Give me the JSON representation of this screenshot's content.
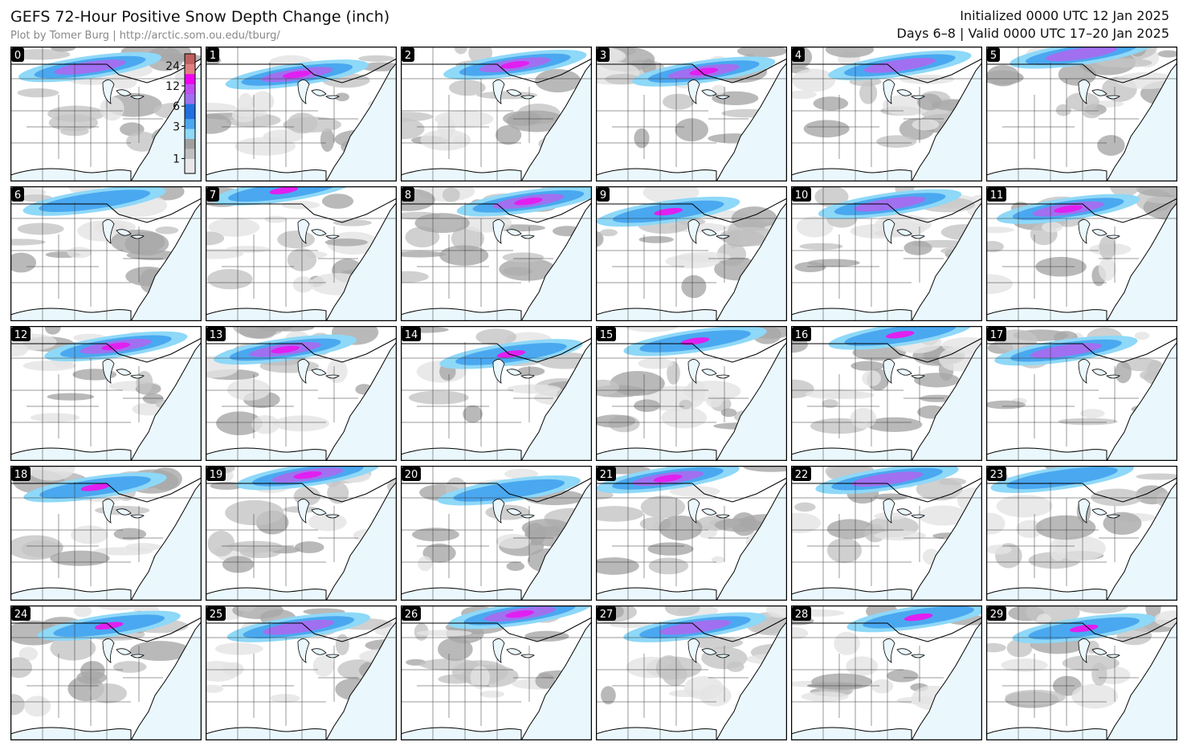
{
  "header": {
    "title": "GEFS 72-Hour Positive Snow Depth Change (inch)",
    "subtitle": "Plot by Tomer Burg | http://arctic.som.ou.edu/tburg/",
    "initialized": "Initialized 0000 UTC 12 Jan 2025",
    "valid": "Days 6–8 | Valid 0000 UTC 17–20 Jan 2025"
  },
  "colorbar": {
    "ticks": [
      1,
      3,
      6,
      12,
      24
    ]
  },
  "panels": [
    {
      "label": "0"
    },
    {
      "label": "1"
    },
    {
      "label": "2"
    },
    {
      "label": "3"
    },
    {
      "label": "4"
    },
    {
      "label": "5"
    },
    {
      "label": "6"
    },
    {
      "label": "7"
    },
    {
      "label": "8"
    },
    {
      "label": "9"
    },
    {
      "label": "10"
    },
    {
      "label": "11"
    },
    {
      "label": "12"
    },
    {
      "label": "13"
    },
    {
      "label": "14"
    },
    {
      "label": "15"
    },
    {
      "label": "16"
    },
    {
      "label": "17"
    },
    {
      "label": "18"
    },
    {
      "label": "19"
    },
    {
      "label": "20"
    },
    {
      "label": "21"
    },
    {
      "label": "22"
    },
    {
      "label": "23"
    },
    {
      "label": "24"
    },
    {
      "label": "25"
    },
    {
      "label": "26"
    },
    {
      "label": "27"
    },
    {
      "label": "28"
    },
    {
      "label": "29"
    }
  ]
}
